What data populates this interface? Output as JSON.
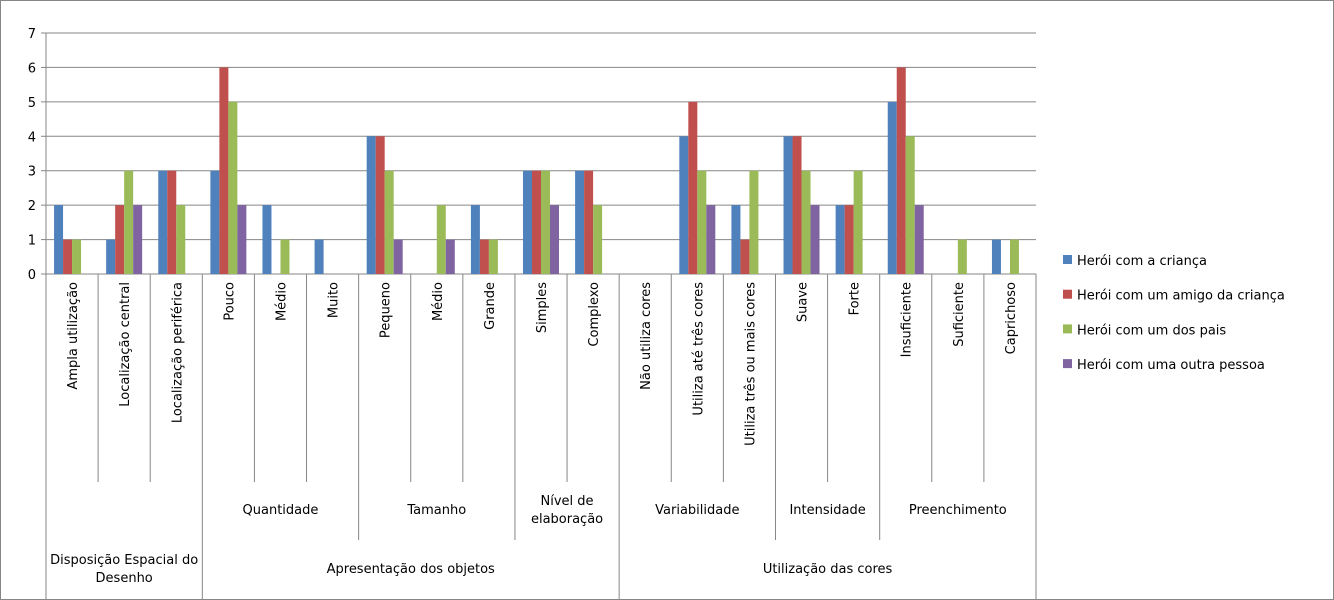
{
  "chart_data": {
    "type": "bar",
    "groups": [
      {
        "name": "Disposição Espacial do Desenho",
        "subgroups": [
          {
            "name": null,
            "categories": [
              "Ampla utilização",
              "Localização central",
              "Localização periférica"
            ]
          }
        ]
      },
      {
        "name": "Apresentação dos objetos",
        "subgroups": [
          {
            "name": "Quantidade",
            "categories": [
              "Pouco",
              "Médio",
              "Muito"
            ]
          },
          {
            "name": "Tamanho",
            "categories": [
              "Pequeno",
              "Médio",
              "Grande"
            ]
          },
          {
            "name": "Nível de elaboração",
            "categories": [
              "Simples",
              "Complexo"
            ]
          }
        ]
      },
      {
        "name": "Utilização das cores",
        "subgroups": [
          {
            "name": "Variabilidade",
            "categories": [
              "Não utiliza cores",
              "Utiliza até três cores",
              "Utiliza três ou mais cores"
            ]
          },
          {
            "name": "Intensidade",
            "categories": [
              "Suave",
              "Forte"
            ]
          },
          {
            "name": "Preenchimento",
            "categories": [
              "Insuficiente",
              "Suficiente",
              "Caprichoso"
            ]
          }
        ]
      }
    ],
    "series": [
      {
        "name": "Herói com a criança",
        "color": "#4f81bd",
        "values": [
          2,
          1,
          3,
          3,
          2,
          1,
          4,
          0,
          2,
          3,
          3,
          0,
          4,
          2,
          4,
          2,
          5,
          0,
          1
        ]
      },
      {
        "name": "Herói com um amigo da criança",
        "color": "#c0504d",
        "values": [
          1,
          2,
          3,
          6,
          0,
          0,
          4,
          0,
          1,
          3,
          3,
          0,
          5,
          1,
          4,
          2,
          6,
          0,
          0
        ]
      },
      {
        "name": "Herói com um dos pais",
        "color": "#9bbb59",
        "values": [
          1,
          3,
          2,
          5,
          1,
          0,
          3,
          2,
          1,
          3,
          2,
          0,
          3,
          3,
          3,
          3,
          4,
          1,
          1
        ]
      },
      {
        "name": "Herói com uma outra pessoa",
        "color": "#8064a2",
        "values": [
          0,
          2,
          0,
          2,
          0,
          0,
          1,
          1,
          0,
          2,
          0,
          0,
          2,
          0,
          2,
          0,
          2,
          0,
          0
        ]
      }
    ],
    "ylim": [
      0,
      7
    ],
    "yticks": [
      0,
      1,
      2,
      3,
      4,
      5,
      6,
      7
    ],
    "grid": true,
    "legend": "right"
  }
}
